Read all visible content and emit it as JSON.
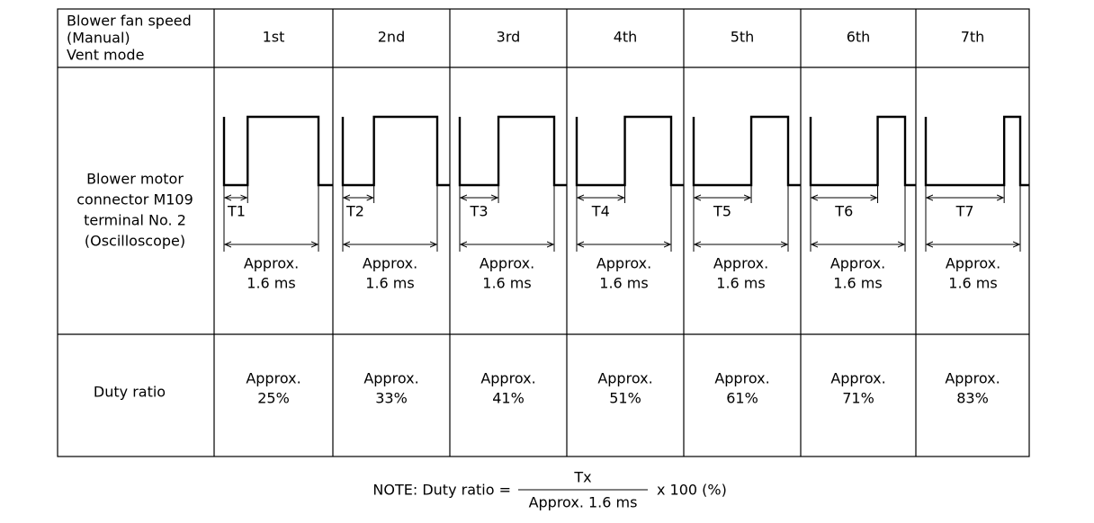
{
  "header": {
    "label": [
      "Blower fan speed",
      "(Manual)",
      "Vent mode"
    ],
    "speeds": [
      "1st",
      "2nd",
      "3rd",
      "4th",
      "5th",
      "6th",
      "7th"
    ]
  },
  "waveform": {
    "label": [
      "Blower motor",
      "connector M109",
      "terminal No. 2",
      "(Oscilloscope)"
    ],
    "cells": [
      {
        "t": "T1",
        "period": [
          "Approx.",
          "1.6 ms"
        ]
      },
      {
        "t": "T2",
        "period": [
          "Approx.",
          "1.6 ms"
        ]
      },
      {
        "t": "T3",
        "period": [
          "Approx.",
          "1.6 ms"
        ]
      },
      {
        "t": "T4",
        "period": [
          "Approx.",
          "1.6 ms"
        ]
      },
      {
        "t": "T5",
        "period": [
          "Approx.",
          "1.6 ms"
        ]
      },
      {
        "t": "T6",
        "period": [
          "Approx.",
          "1.6 ms"
        ]
      },
      {
        "t": "T7",
        "period": [
          "Approx.",
          "1.6 ms"
        ]
      }
    ]
  },
  "duty": {
    "label": "Duty ratio",
    "cells": [
      [
        "Approx.",
        "25%"
      ],
      [
        "Approx.",
        "33%"
      ],
      [
        "Approx.",
        "41%"
      ],
      [
        "Approx.",
        "51%"
      ],
      [
        "Approx.",
        "61%"
      ],
      [
        "Approx.",
        "71%"
      ],
      [
        "Approx.",
        "83%"
      ]
    ]
  },
  "note": {
    "lead": "NOTE: Duty ratio =",
    "numerator": "Tx",
    "denominator": "Approx. 1.6 ms",
    "tail": "x 100 (%)"
  }
}
